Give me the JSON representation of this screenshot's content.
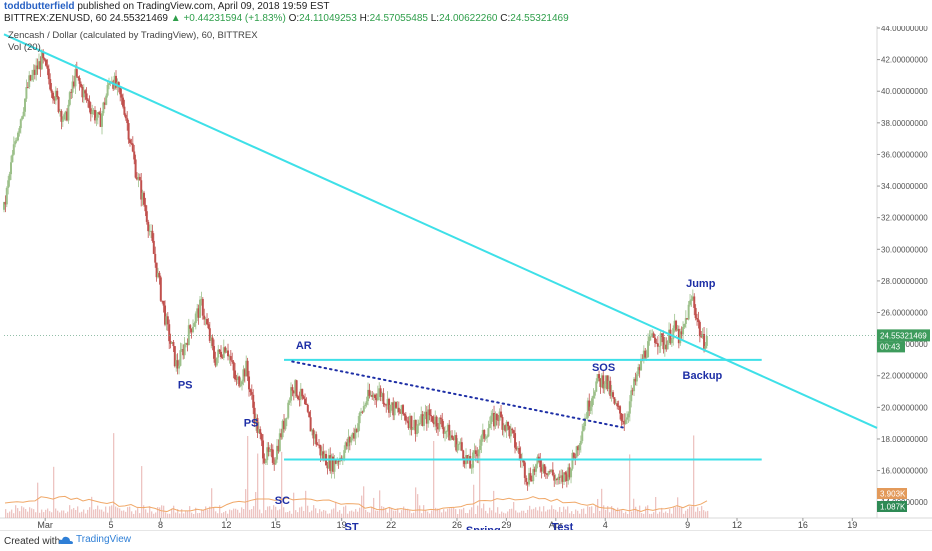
{
  "header": {
    "author": "toddbutterfield",
    "published": "published on TradingView.com, April 09, 2018 19:59 EST",
    "symbol": "BITTREX:ZENUSD, 60",
    "last": "24.55321469",
    "change": "+0.44231594 (+1.83%)",
    "o_label": "O:",
    "o_value": "24.11049253",
    "h_label": "H:",
    "h_value": "24.57055485",
    "l_label": "L:",
    "l_value": "24.00622260",
    "c_label": "C:",
    "c_value": "24.55321469"
  },
  "legend": {
    "title": "Zencash / Dollar (calculated by TradingView), 60, BITTREX",
    "indicator": "Vol (20)"
  },
  "footer": {
    "created_with": "Created with",
    "brand": "TradingView"
  },
  "colors": {
    "candle_up": "#9cc08a",
    "candle_down": "#c0504d",
    "trendline": "#3ee0e8",
    "annotation": "#1e2fa6",
    "volume": "#e7b0ad",
    "volume_ma": "#f0a868"
  },
  "chart_data": {
    "type": "candlestick",
    "title": "Zencash / Dollar (calculated by TradingView), 60, BITTREX",
    "interval": "60",
    "y_range": [
      13,
      44
    ],
    "y_ticks": [
      "44.00000000",
      "42.00000000",
      "40.00000000",
      "38.00000000",
      "36.00000000",
      "34.00000000",
      "32.00000000",
      "30.00000000",
      "28.00000000",
      "26.00000000",
      "24.00000000",
      "22.00000000",
      "20.00000000",
      "18.00000000",
      "16.00000000",
      "14.00000000"
    ],
    "x_ticks": [
      {
        "label": "Mar",
        "day": 1
      },
      {
        "label": "5",
        "day": 5
      },
      {
        "label": "8",
        "day": 8
      },
      {
        "label": "12",
        "day": 12
      },
      {
        "label": "15",
        "day": 15
      },
      {
        "label": "19",
        "day": 19
      },
      {
        "label": "22",
        "day": 22
      },
      {
        "label": "26",
        "day": 26
      },
      {
        "label": "29",
        "day": 29
      },
      {
        "label": "Apr",
        "day": 32
      },
      {
        "label": "4",
        "day": 35
      },
      {
        "label": "9",
        "day": 40
      },
      {
        "label": "12",
        "day": 43
      },
      {
        "label": "16",
        "day": 47
      },
      {
        "label": "19",
        "day": 50
      }
    ],
    "x_range": [
      -1.5,
      51.5
    ],
    "price_path": [
      [
        -1.5,
        32.5
      ],
      [
        -0.8,
        37
      ],
      [
        0,
        40.5
      ],
      [
        0.8,
        42
      ],
      [
        1.5,
        40
      ],
      [
        2.2,
        38
      ],
      [
        2.8,
        41
      ],
      [
        3.5,
        39.5
      ],
      [
        4.3,
        38
      ],
      [
        5,
        41
      ],
      [
        5.8,
        39
      ],
      [
        6.5,
        35
      ],
      [
        7.2,
        32
      ],
      [
        7.8,
        28.5
      ],
      [
        8.4,
        25
      ],
      [
        9,
        22.5
      ],
      [
        9.8,
        25
      ],
      [
        10.5,
        26.5
      ],
      [
        11.3,
        23
      ],
      [
        12,
        24
      ],
      [
        12.6,
        21.5
      ],
      [
        13.2,
        22.5
      ],
      [
        13.8,
        19
      ],
      [
        14.3,
        17
      ],
      [
        14.9,
        16.8
      ],
      [
        15.5,
        19
      ],
      [
        16,
        21.5
      ],
      [
        16.6,
        20.5
      ],
      [
        17.2,
        18.5
      ],
      [
        17.8,
        17
      ],
      [
        18.4,
        16.4
      ],
      [
        19,
        17
      ],
      [
        19.8,
        18.5
      ],
      [
        20.5,
        20.5
      ],
      [
        21.3,
        21
      ],
      [
        22,
        20
      ],
      [
        22.8,
        19.5
      ],
      [
        23.5,
        18.8
      ],
      [
        24.3,
        19.5
      ],
      [
        25,
        19
      ],
      [
        25.6,
        18.2
      ],
      [
        26.2,
        17.5
      ],
      [
        26.8,
        16.2
      ],
      [
        27.3,
        17.5
      ],
      [
        27.9,
        18.8
      ],
      [
        28.5,
        19.5
      ],
      [
        29.2,
        18.5
      ],
      [
        29.8,
        17
      ],
      [
        30.3,
        15.5
      ],
      [
        31,
        16.5
      ],
      [
        31.6,
        16
      ],
      [
        32.2,
        15.2
      ],
      [
        32.8,
        16
      ],
      [
        33.3,
        17.5
      ],
      [
        33.8,
        19.5
      ],
      [
        34.4,
        21.5
      ],
      [
        35,
        21.8
      ],
      [
        35.6,
        20
      ],
      [
        36.2,
        19.2
      ],
      [
        36.8,
        21.5
      ],
      [
        37.4,
        23.5
      ],
      [
        38,
        24.5
      ],
      [
        38.6,
        24
      ],
      [
        39.2,
        25
      ],
      [
        39.6,
        24.2
      ],
      [
        40,
        26
      ],
      [
        40.3,
        27
      ],
      [
        40.6,
        25.5
      ],
      [
        40.9,
        24.1
      ],
      [
        41.2,
        24.55
      ]
    ],
    "last_price": "24.55321469",
    "countdown": "00:43",
    "volume_labels": [
      "3.903K",
      "1.087K"
    ],
    "annotations": [
      {
        "text": "PS",
        "day": 9.5,
        "price": 21.2
      },
      {
        "text": "PS",
        "day": 13.5,
        "price": 18.8
      },
      {
        "text": "SC",
        "day": 15.4,
        "price": 13.9
      },
      {
        "text": "AR",
        "day": 16.7,
        "price": 23.7
      },
      {
        "text": "ST",
        "day": 19.6,
        "price": 12.2
      },
      {
        "text": "Spring",
        "day": 27.6,
        "price": 12.0
      },
      {
        "text": "Test",
        "day": 32.4,
        "price": 12.2
      },
      {
        "text": "SOS",
        "day": 34.9,
        "price": 22.3
      },
      {
        "text": "Jump",
        "day": 40.8,
        "price": 27.6
      },
      {
        "text": "Backup",
        "day": 40.9,
        "price": 21.8
      }
    ],
    "lines": [
      {
        "style": "solid",
        "from": [
          -1.5,
          43.6
        ],
        "to": [
          51.5,
          18.7
        ]
      },
      {
        "style": "solid",
        "from": [
          15.5,
          23.0
        ],
        "to": [
          44.5,
          23.0
        ]
      },
      {
        "style": "solid",
        "from": [
          15.5,
          16.7
        ],
        "to": [
          44.5,
          16.7
        ]
      },
      {
        "style": "dotted",
        "from": [
          16,
          22.9
        ],
        "to": [
          36.2,
          18.7
        ]
      }
    ]
  }
}
